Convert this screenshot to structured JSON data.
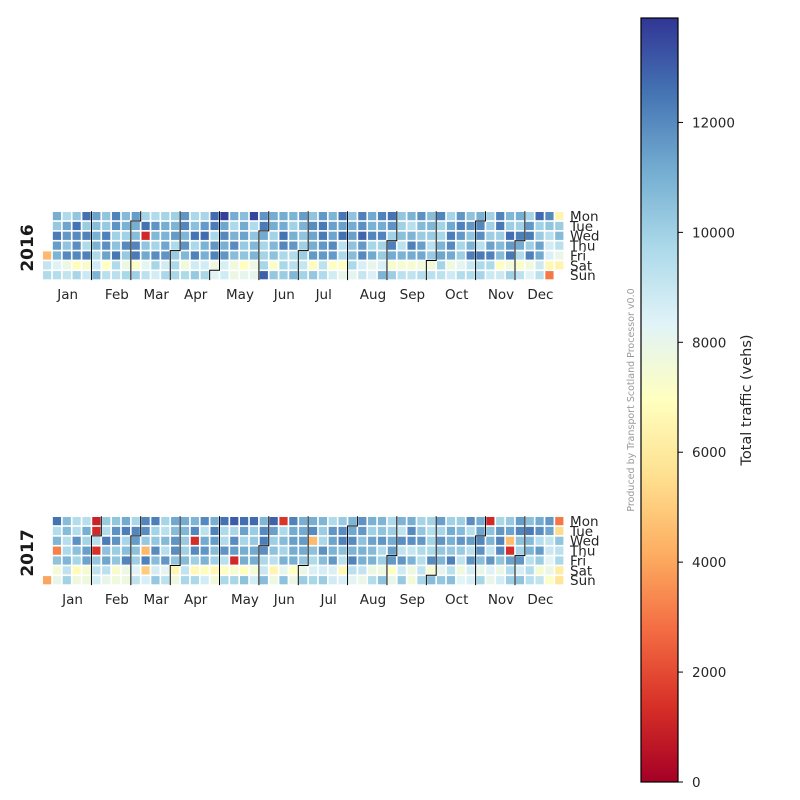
{
  "chart_data": {
    "type": "heatmap",
    "subtype": "calendar-heatmap",
    "credit": "Produced by Transport Scotland Processor v0.0",
    "colormap": "RdYlBu",
    "colors": {
      "low": "#a50026",
      "mid": "#ffffbf",
      "high": "#313695",
      "cell_edge": "#ffffff",
      "month_border": "#000000"
    },
    "colorbar": {
      "label": "Total traffic (vehs)",
      "min": 0,
      "max": 13900,
      "ticks": [
        0,
        2000,
        4000,
        6000,
        8000,
        10000,
        12000
      ]
    },
    "weekday_labels": [
      "Mon",
      "Tue",
      "Wed",
      "Thu",
      "Fri",
      "Sat",
      "Sun"
    ],
    "month_labels": [
      "Jan",
      "Feb",
      "Mar",
      "Apr",
      "May",
      "Jun",
      "Jul",
      "Aug",
      "Sep",
      "Oct",
      "Nov",
      "Dec"
    ],
    "years": [
      {
        "year": "2016",
        "weekday_profile": [
          11200,
          11000,
          11300,
          10700,
          10900,
          8300,
          9400
        ],
        "notable_days": [
          {
            "date": "2016-03-09",
            "value": 1200
          },
          {
            "date": "2016-01-01",
            "value": 4500
          },
          {
            "date": "2016-12-25",
            "value": 3000
          },
          {
            "date": "2016-12-26",
            "value": 6500
          },
          {
            "date": "2016-06-05",
            "value": 13000
          }
        ]
      },
      {
        "year": "2017",
        "weekday_profile": [
          11000,
          10800,
          11000,
          10600,
          10700,
          8100,
          9100
        ],
        "notable_days": [
          {
            "date": "2017-01-01",
            "value": 4000
          },
          {
            "date": "2017-01-30",
            "value": 1000
          },
          {
            "date": "2017-01-31",
            "value": 1200
          },
          {
            "date": "2017-02-02",
            "value": 1400
          },
          {
            "date": "2017-01-05",
            "value": 3200
          },
          {
            "date": "2017-03-09",
            "value": 4500
          },
          {
            "date": "2017-03-11",
            "value": 5000
          },
          {
            "date": "2017-04-12",
            "value": 1300
          },
          {
            "date": "2017-05-12",
            "value": 1200
          },
          {
            "date": "2017-06-12",
            "value": 1500
          },
          {
            "date": "2017-07-05",
            "value": 4500
          },
          {
            "date": "2017-11-06",
            "value": 1200
          },
          {
            "date": "2017-11-23",
            "value": 1300
          },
          {
            "date": "2017-11-22",
            "value": 4600
          },
          {
            "date": "2017-12-25",
            "value": 3000
          },
          {
            "date": "2017-12-26",
            "value": 5500
          },
          {
            "date": "2017-12-31",
            "value": 5800
          }
        ]
      }
    ]
  }
}
